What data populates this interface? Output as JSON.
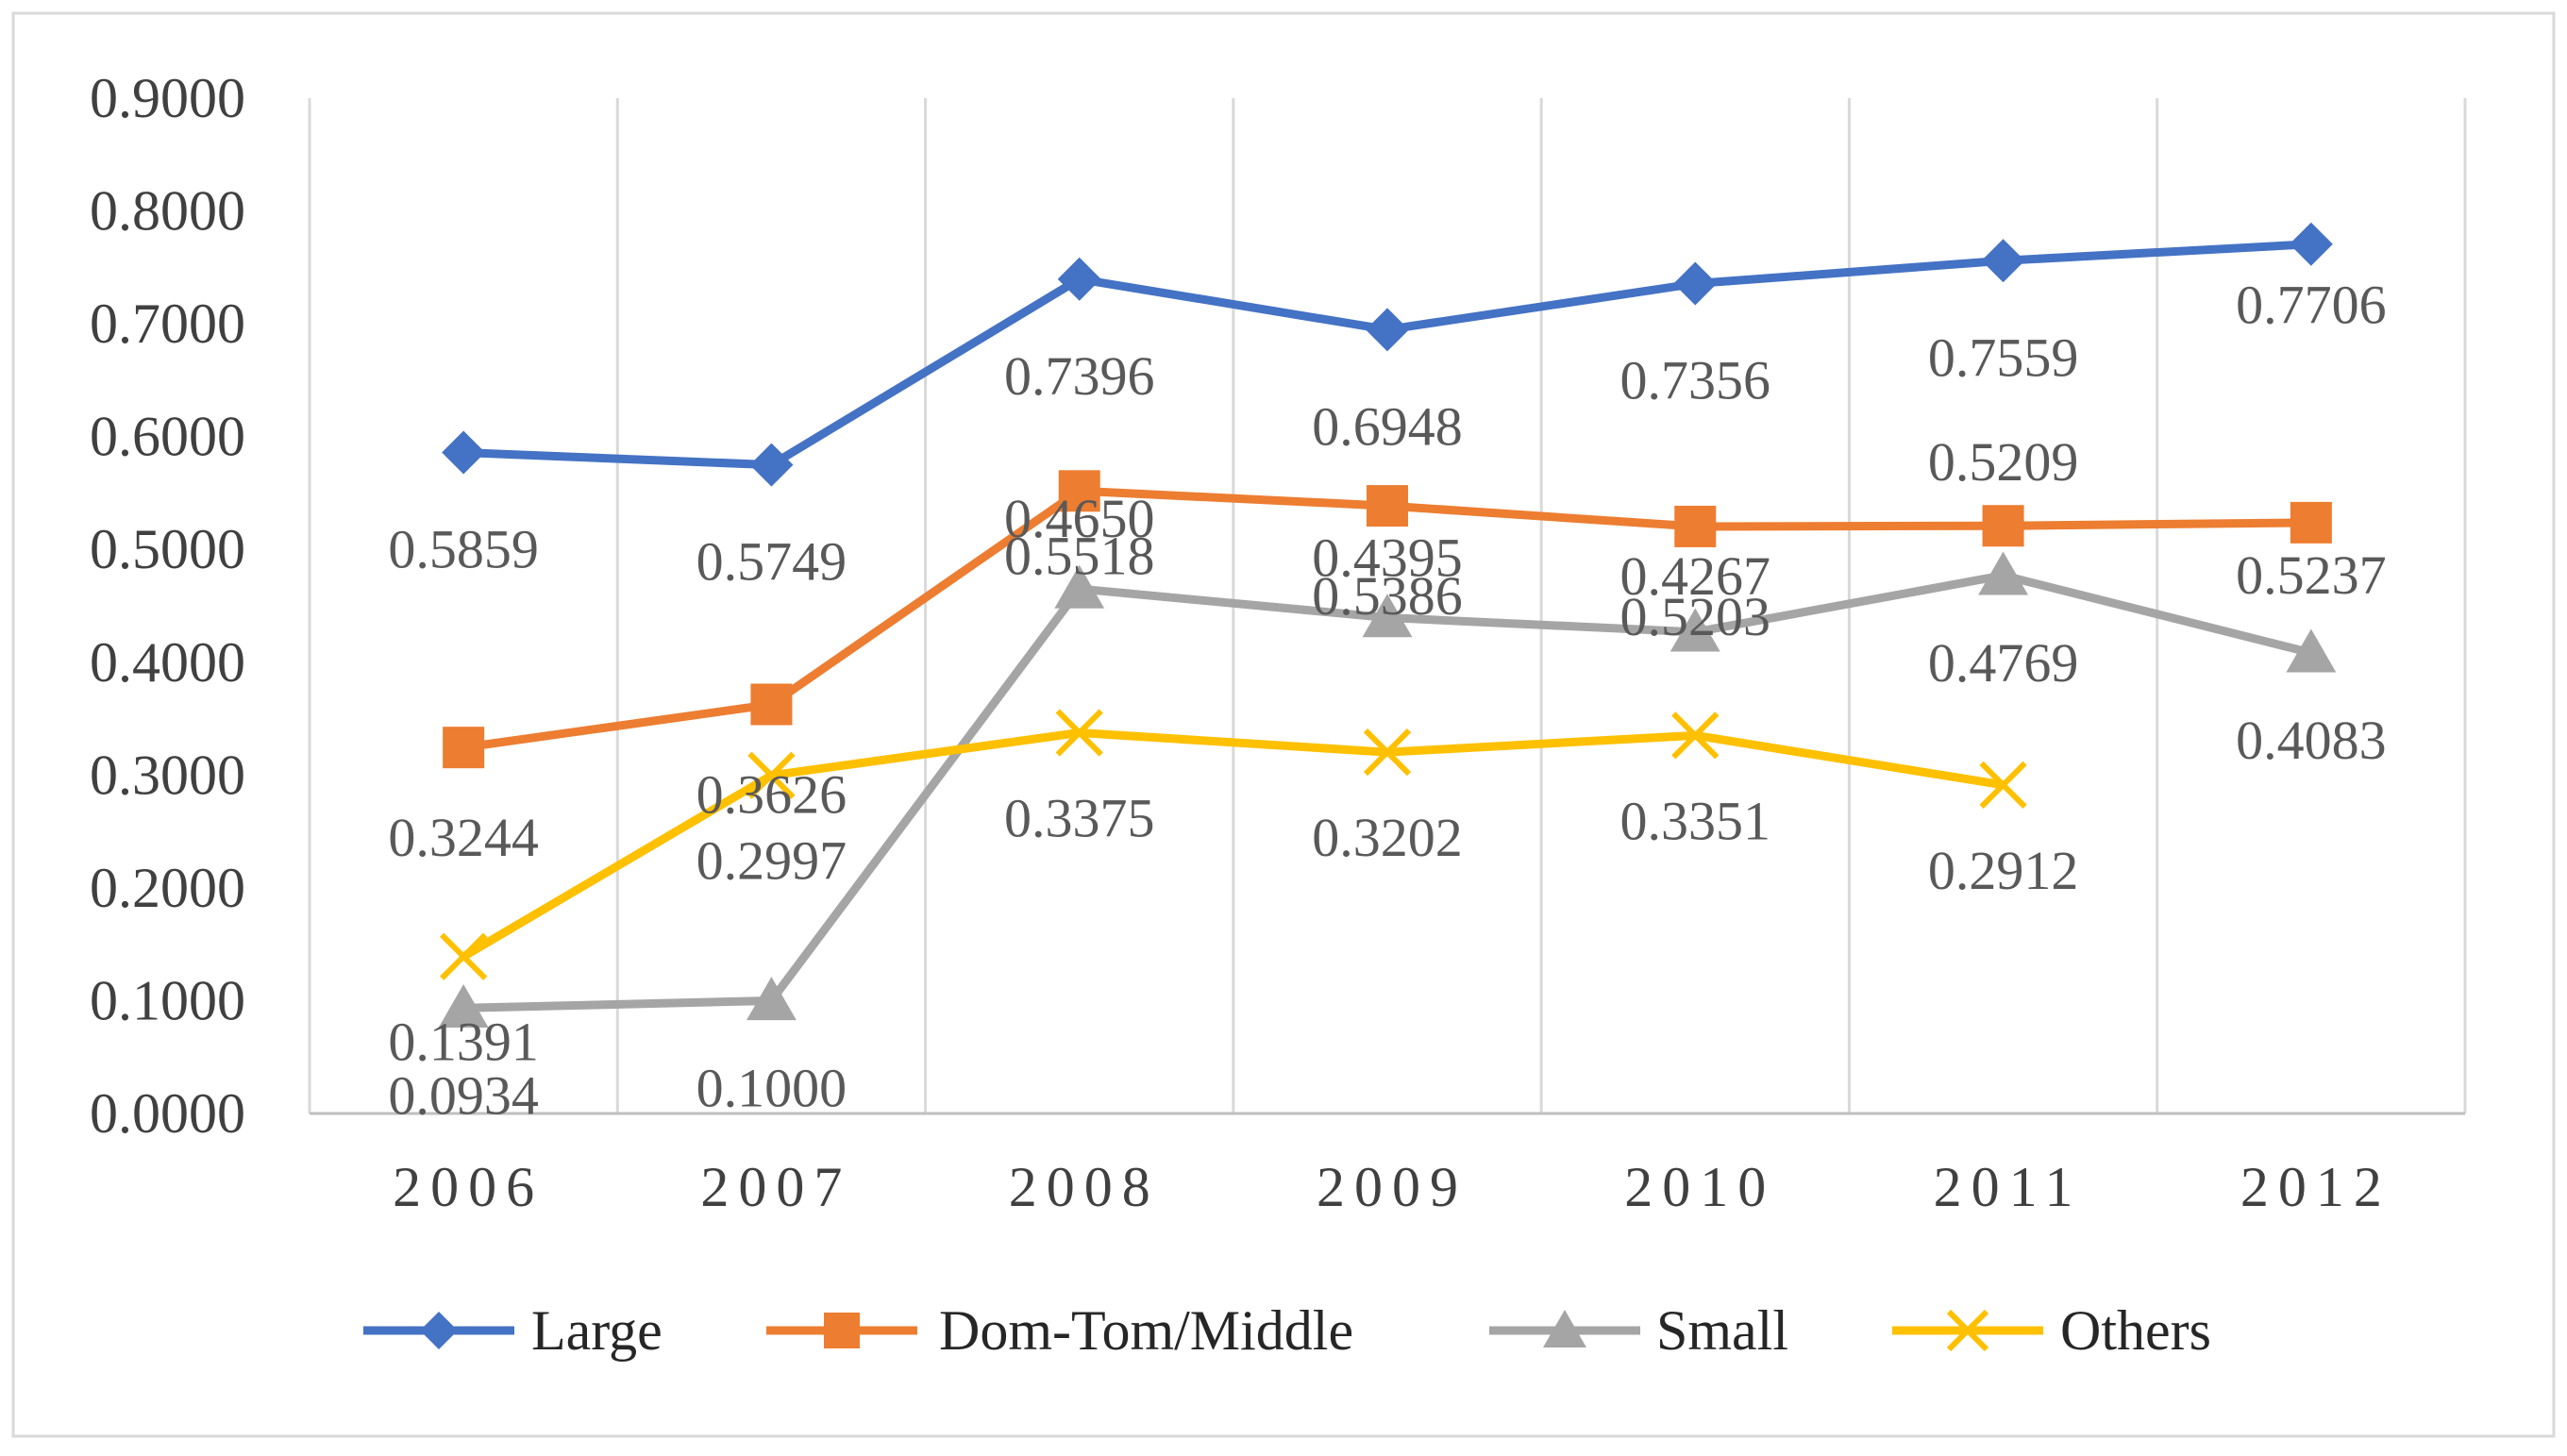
{
  "chart_data": {
    "type": "line",
    "title": "",
    "xlabel": "",
    "ylabel": "",
    "categories": [
      "2006",
      "2007",
      "2008",
      "2009",
      "2010",
      "2011",
      "2012"
    ],
    "ylim": [
      0,
      0.9
    ],
    "yticks": [
      "0.0000",
      "0.1000",
      "0.2000",
      "0.3000",
      "0.4000",
      "0.5000",
      "0.6000",
      "0.7000",
      "0.8000",
      "0.9000"
    ],
    "grid": "vertical",
    "legend_position": "bottom",
    "series": [
      {
        "name": "Large",
        "marker": "diamond",
        "color": "#4472C4",
        "values": [
          0.5859,
          0.5749,
          0.7396,
          0.6948,
          0.7356,
          0.7559,
          0.7706
        ],
        "labels": [
          "0.5859",
          "0.5749",
          "0.7396",
          "0.6948",
          "0.7356",
          "0.7559",
          "0.7706"
        ]
      },
      {
        "name": "Dom-Tom/Middle",
        "marker": "square",
        "color": "#ED7D31",
        "values": [
          0.3244,
          0.3626,
          0.5518,
          0.5386,
          0.5203,
          0.5209,
          0.5237
        ],
        "labels": [
          "0.3244",
          "0.3626",
          "0.5518",
          "0.5386",
          "0.5203",
          "0.5209",
          "0.5237"
        ]
      },
      {
        "name": "Small",
        "marker": "triangle",
        "color": "#A5A5A5",
        "values": [
          0.0934,
          0.1,
          0.465,
          0.4395,
          0.4267,
          0.4769,
          0.4083
        ],
        "labels": [
          "0.0934",
          "0.1000",
          "0.4650",
          "0.4395",
          "0.4267",
          "0.4769",
          "0.4083"
        ]
      },
      {
        "name": "Others",
        "marker": "x",
        "color": "#FFC000",
        "values": [
          0.1391,
          0.2997,
          0.3375,
          0.3202,
          0.3351,
          0.2912,
          null
        ],
        "labels": [
          "0.1391",
          "0.2997",
          "0.3375",
          "0.3202",
          "0.3351",
          "0.2912",
          null
        ]
      }
    ]
  }
}
